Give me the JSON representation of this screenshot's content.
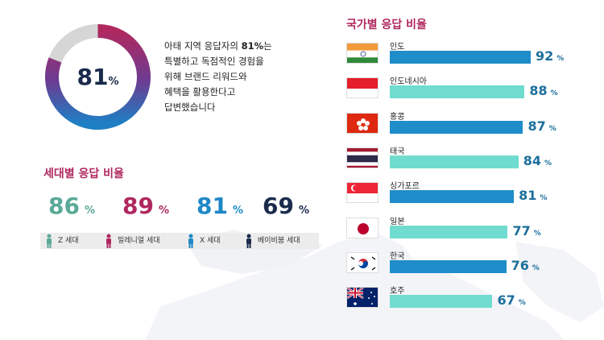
{
  "colors": {
    "accent": "#b0285f",
    "navy": "#1a2b4c",
    "teal": "#5aa998",
    "magenta": "#b0285f",
    "blue": "#1e88c7",
    "dark_navy": "#1a2b4c",
    "bar_blue": "#1e8dc9",
    "bar_teal": "#6fdccf"
  },
  "donut": {
    "value": "81",
    "unit": "%",
    "fraction": 0.81
  },
  "intro": {
    "line1_pre": "아태 지역 응답자의 ",
    "line1_bold": "81%",
    "line1_post": "는",
    "line2": "특별하고 독점적인 경험을",
    "line3": "위해 브랜드 리워드와",
    "line4": "혜택을 활용한다고",
    "line5": "답변했습니다"
  },
  "generations": {
    "title": "세대별 응답 비율",
    "items": [
      {
        "value": "86",
        "unit": "%",
        "label": "Z 세대",
        "color": "#5aa998"
      },
      {
        "value": "89",
        "unit": "%",
        "label": "밀레니얼 세대",
        "color": "#b0285f"
      },
      {
        "value": "81",
        "unit": "%",
        "label": "X 세대",
        "color": "#1e88c7"
      },
      {
        "value": "69",
        "unit": "%",
        "label": "베이비붐 세대",
        "color": "#1a2b4c"
      }
    ]
  },
  "countries": {
    "title": "국가별 응답 비율"
  },
  "chart_data": {
    "type": "bar",
    "title": "국가별 응답 비율",
    "categories": [
      "인도",
      "인도네시아",
      "홍콩",
      "태국",
      "싱가포르",
      "일본",
      "한국",
      "호주"
    ],
    "values": [
      92,
      88,
      87,
      84,
      81,
      77,
      76,
      67
    ],
    "value_labels": [
      "92",
      "88",
      "87",
      "84",
      "81",
      "77",
      "76",
      "67"
    ],
    "unit": "%",
    "flags": [
      "india-flag",
      "indonesia-flag",
      "hong-kong-flag",
      "thailand-flag",
      "singapore-flag",
      "japan-flag",
      "korea-flag",
      "australia-flag"
    ],
    "bar_colors": [
      "#1e8dc9",
      "#6fdccf",
      "#1e8dc9",
      "#6fdccf",
      "#1e8dc9",
      "#6fdccf",
      "#1e8dc9",
      "#6fdccf"
    ]
  }
}
